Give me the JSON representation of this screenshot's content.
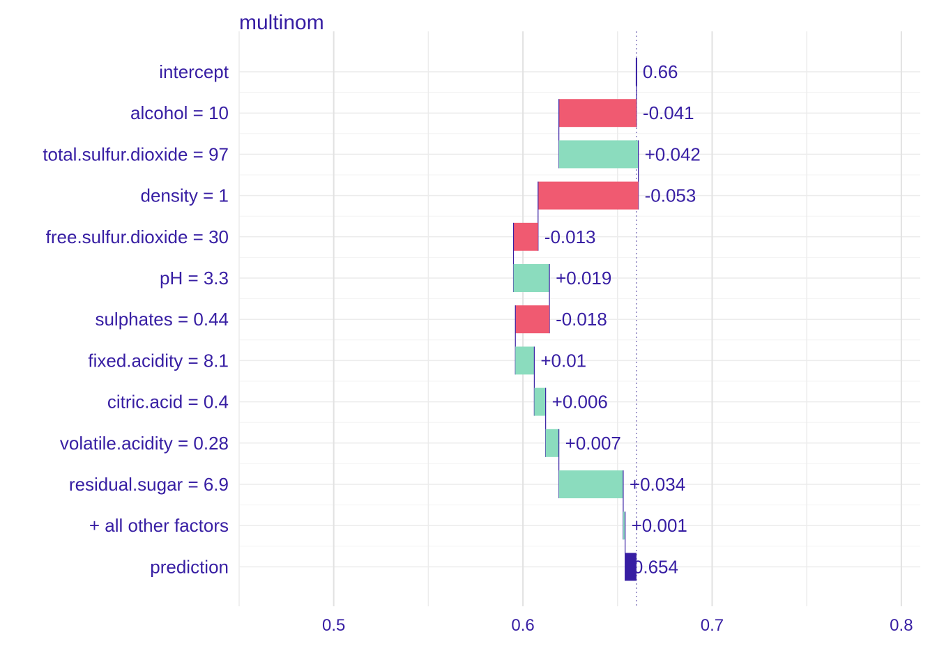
{
  "chart_data": {
    "type": "bar",
    "subtype": "waterfall (break-down)",
    "title": "multinom",
    "xlabel": "",
    "ylabel": "",
    "xlim": [
      0.45,
      0.81
    ],
    "xticks": [
      0.5,
      0.6,
      0.7,
      0.8
    ],
    "xtick_labels": [
      "0.5",
      "0.6",
      "0.7",
      "0.8"
    ],
    "baseline": 0.66,
    "grid": true,
    "colors": {
      "positive": "#8bdcbe",
      "negative": "#f05a71",
      "prediction": "#371ea3",
      "text": "#371ea3",
      "grid": "#e6e6e6"
    },
    "rows": [
      {
        "label": "intercept",
        "start": 0.66,
        "end": 0.66,
        "value_label": "0.66",
        "kind": "intercept"
      },
      {
        "label": "alcohol = 10",
        "start": 0.66,
        "end": 0.619,
        "value_label": "-0.041",
        "kind": "negative"
      },
      {
        "label": "total.sulfur.dioxide = 97",
        "start": 0.619,
        "end": 0.661,
        "value_label": "+0.042",
        "kind": "positive"
      },
      {
        "label": "density = 1",
        "start": 0.661,
        "end": 0.608,
        "value_label": "-0.053",
        "kind": "negative"
      },
      {
        "label": "free.sulfur.dioxide = 30",
        "start": 0.608,
        "end": 0.595,
        "value_label": "-0.013",
        "kind": "negative"
      },
      {
        "label": "pH = 3.3",
        "start": 0.595,
        "end": 0.614,
        "value_label": "+0.019",
        "kind": "positive"
      },
      {
        "label": "sulphates = 0.44",
        "start": 0.614,
        "end": 0.596,
        "value_label": "-0.018",
        "kind": "negative"
      },
      {
        "label": "fixed.acidity = 8.1",
        "start": 0.596,
        "end": 0.606,
        "value_label": "+0.01",
        "kind": "positive"
      },
      {
        "label": "citric.acid = 0.4",
        "start": 0.606,
        "end": 0.612,
        "value_label": "+0.006",
        "kind": "positive"
      },
      {
        "label": "volatile.acidity = 0.28",
        "start": 0.612,
        "end": 0.619,
        "value_label": "+0.007",
        "kind": "positive"
      },
      {
        "label": "residual.sugar = 6.9",
        "start": 0.619,
        "end": 0.653,
        "value_label": "+0.034",
        "kind": "positive"
      },
      {
        "label": "+ all other factors",
        "start": 0.653,
        "end": 0.654,
        "value_label": "+0.001",
        "kind": "positive"
      },
      {
        "label": "prediction",
        "start": 0.66,
        "end": 0.654,
        "value_label": "0.654",
        "kind": "prediction"
      }
    ]
  }
}
